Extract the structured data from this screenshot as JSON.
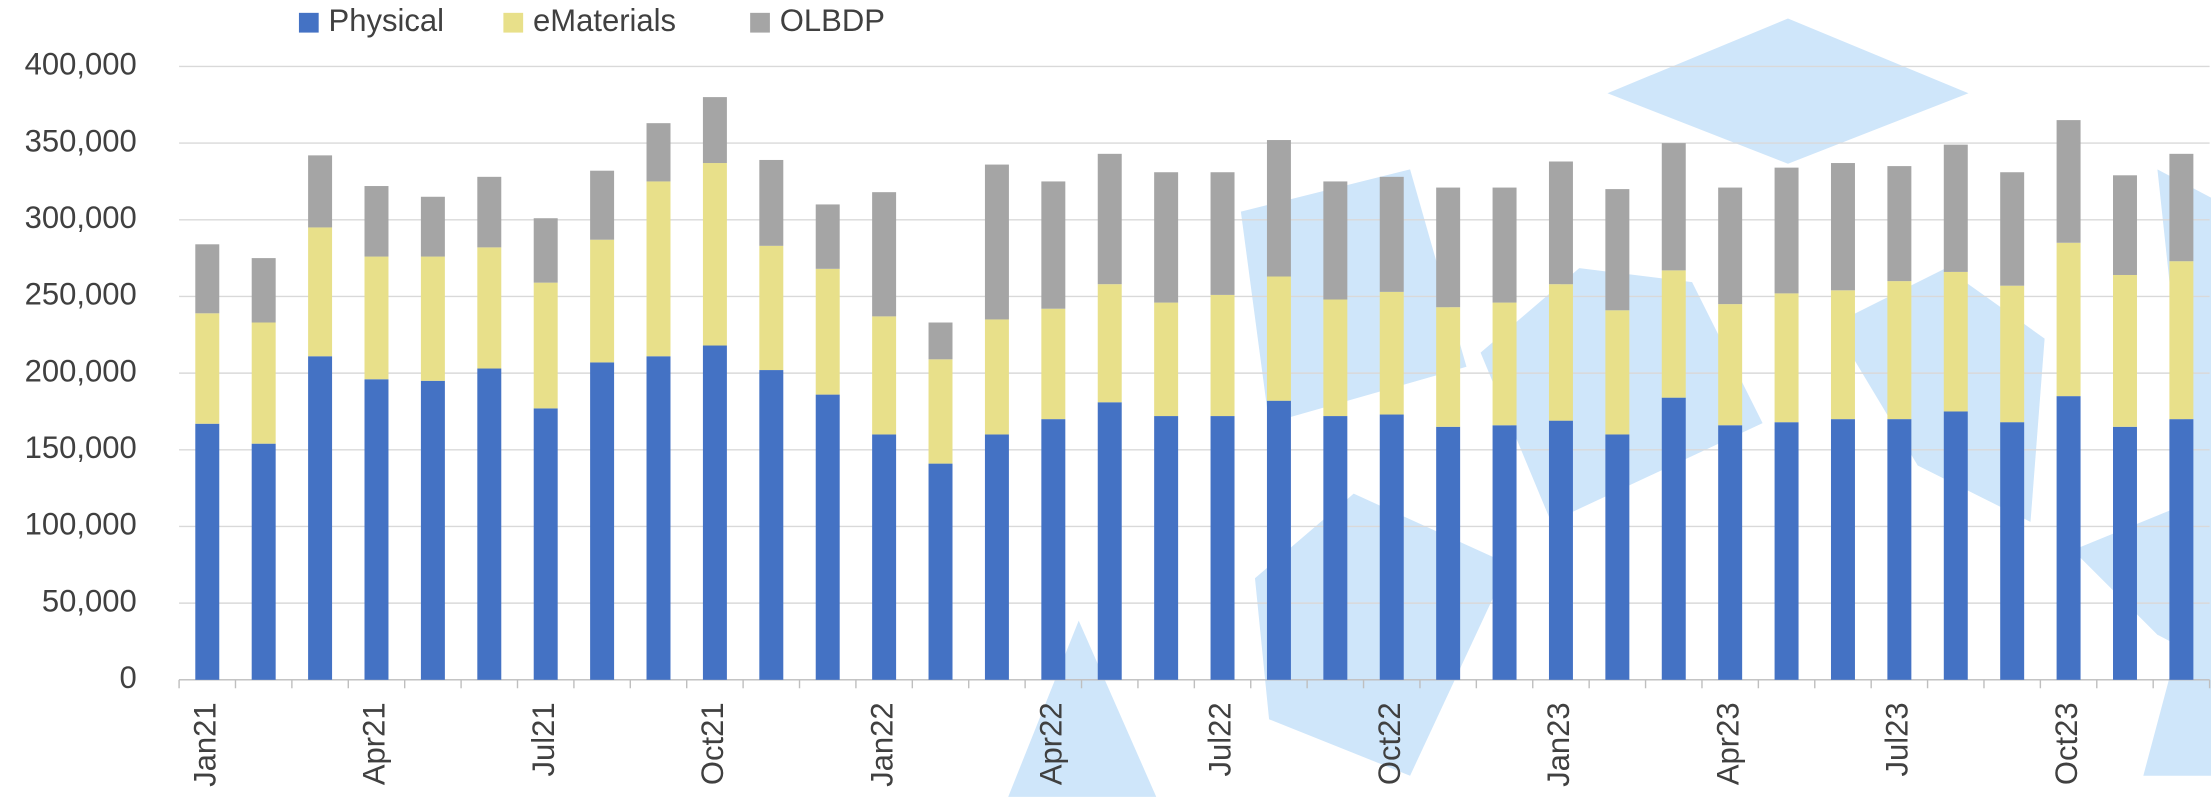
{
  "chart_data": {
    "type": "stacked-bar",
    "categories": [
      "Jan21",
      null,
      null,
      "Apr21",
      null,
      null,
      "Jul21",
      null,
      null,
      "Oct21",
      null,
      null,
      "Jan22",
      null,
      null,
      "Apr22",
      null,
      null,
      "Jul22",
      null,
      null,
      "Oct22",
      null,
      null,
      "Jan23",
      null,
      null,
      "Apr23",
      null,
      null,
      "Jul23",
      null,
      null,
      "Oct23",
      null,
      null
    ],
    "series": [
      {
        "name": "Physical",
        "color": "#4472c4",
        "values": [
          167000,
          154000,
          211000,
          196000,
          195000,
          203000,
          177000,
          207000,
          211000,
          218000,
          202000,
          186000,
          160000,
          141000,
          160000,
          170000,
          181000,
          172000,
          172000,
          182000,
          172000,
          173000,
          165000,
          166000,
          169000,
          160000,
          184000,
          166000,
          168000,
          170000,
          170000,
          175000,
          168000,
          185000,
          165000,
          170000
        ]
      },
      {
        "name": "eMaterials",
        "color": "#e8e08a",
        "values": [
          72000,
          79000,
          84000,
          80000,
          81000,
          79000,
          82000,
          80000,
          114000,
          119000,
          81000,
          82000,
          77000,
          68000,
          75000,
          72000,
          77000,
          74000,
          79000,
          81000,
          76000,
          80000,
          78000,
          80000,
          89000,
          81000,
          83000,
          79000,
          84000,
          84000,
          90000,
          91000,
          89000,
          100000,
          99000,
          103000
        ]
      },
      {
        "name": "OLBDP",
        "color": "#a5a5a5",
        "values": [
          45000,
          42000,
          47000,
          46000,
          39000,
          46000,
          42000,
          45000,
          38000,
          43000,
          56000,
          42000,
          81000,
          24000,
          101000,
          83000,
          85000,
          85000,
          80000,
          89000,
          77000,
          75000,
          78000,
          75000,
          80000,
          79000,
          83000,
          76000,
          82000,
          83000,
          75000,
          83000,
          74000,
          80000,
          65000,
          70000
        ]
      }
    ],
    "ylim": [
      0,
      400000
    ],
    "yticks": [
      0,
      {
        "value": 50000,
        "label": "50,000"
      },
      {
        "value": 100000,
        "label": "100,000"
      },
      {
        "value": 150000,
        "label": "150,000"
      },
      {
        "value": 200000,
        "label": "200,000"
      },
      {
        "value": 250000,
        "label": "250,000"
      },
      {
        "value": 300000,
        "label": "300,000"
      },
      {
        "value": 350000,
        "label": "350,000"
      },
      {
        "value": 400000,
        "label": "400,000"
      }
    ],
    "grid": true,
    "legend": "top"
  }
}
